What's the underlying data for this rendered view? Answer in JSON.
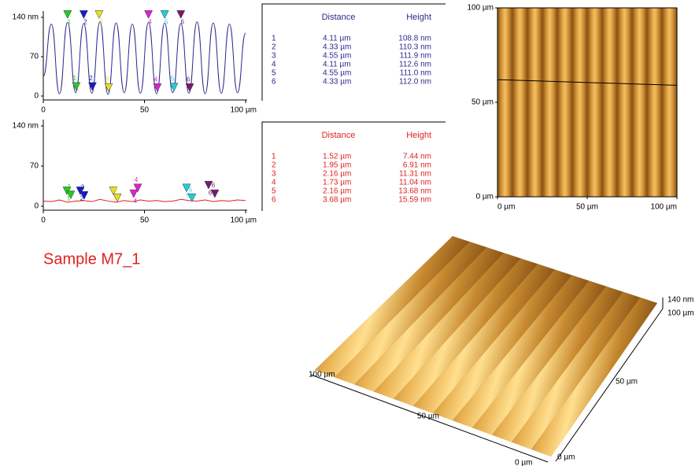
{
  "profiles": [
    {
      "xlim": [
        0,
        100
      ],
      "ylim": [
        0,
        140
      ],
      "xticks": [
        0,
        50,
        {
          "value": 100,
          "label": "100 µm"
        }
      ],
      "yticks": [
        {
          "value": 140,
          "label": "140 nm"
        },
        70,
        0
      ],
      "color": "#2a2a8c",
      "smooth": true,
      "x": [
        0,
        4,
        8,
        12,
        16,
        20,
        24,
        28,
        32,
        36,
        40,
        44,
        48,
        52,
        56,
        60,
        64,
        68,
        72,
        76,
        80,
        84,
        88,
        92,
        96,
        100
      ],
      "values": [
        35,
        128,
        4,
        131,
        6,
        129,
        5,
        132,
        3,
        130,
        6,
        128,
        5,
        131,
        4,
        130,
        6,
        129,
        5,
        132,
        4,
        130,
        5,
        128,
        6,
        112
      ],
      "markers": [
        {
          "label": "1",
          "color": "#22cc22",
          "x": [
            12,
            16.3
          ],
          "values": [
            138,
            10
          ]
        },
        {
          "label": "2",
          "color": "#1a1acc",
          "x": [
            20,
            24.3
          ],
          "values": [
            138,
            10
          ]
        },
        {
          "label": "3",
          "color": "#e8e020",
          "x": [
            27.6,
            32.3
          ],
          "values": [
            138,
            8
          ]
        },
        {
          "label": "4",
          "color": "#e020d0",
          "x": [
            52,
            56.4
          ],
          "values": [
            138,
            8
          ]
        },
        {
          "label": "5",
          "color": "#20d0d8",
          "x": [
            60,
            64.6
          ],
          "values": [
            138,
            9
          ]
        },
        {
          "label": "6",
          "color": "#7a1a6a",
          "x": [
            68,
            72.4
          ],
          "values": [
            138,
            8
          ]
        }
      ]
    },
    {
      "xlim": [
        0,
        100
      ],
      "ylim": [
        0,
        140
      ],
      "xticks": [
        0,
        50,
        {
          "value": 100,
          "label": "100 µm"
        }
      ],
      "yticks": [
        {
          "value": 140,
          "label": "140 nm"
        },
        70,
        0
      ],
      "color": "#e02020",
      "smooth": false,
      "x": [
        0,
        4,
        8,
        12,
        16,
        20,
        24,
        28,
        32,
        36,
        40,
        44,
        48,
        52,
        56,
        60,
        64,
        68,
        72,
        76,
        80,
        84,
        88,
        92,
        96,
        100
      ],
      "values": [
        9,
        8,
        11,
        7,
        9,
        10,
        8,
        12,
        9,
        7,
        10,
        8,
        11,
        9,
        10,
        8,
        9,
        12,
        10,
        9,
        11,
        8,
        10,
        9,
        11,
        10
      ],
      "markers": [
        {
          "label": "1",
          "color": "#22cc22",
          "x": [
            11.7,
            13.6
          ],
          "values": [
            20,
            13
          ]
        },
        {
          "label": "2",
          "color": "#1a1acc",
          "x": [
            18.3,
            20.2
          ],
          "values": [
            20,
            12
          ]
        },
        {
          "label": "3",
          "color": "#e8e020",
          "x": [
            34.6,
            36.6
          ],
          "values": [
            20,
            8
          ]
        },
        {
          "label": "4",
          "color": "#e020d0",
          "x": [
            44.7,
            46.7
          ],
          "values": [
            15,
            25
          ]
        },
        {
          "label": "5",
          "color": "#20d0d8",
          "x": [
            70.8,
            73.5
          ],
          "values": [
            25,
            8
          ]
        },
        {
          "label": "6",
          "color": "#7a1a6a",
          "x": [
            81.7,
            84.8
          ],
          "values": [
            30,
            15
          ]
        }
      ]
    }
  ],
  "tables": [
    {
      "color": "#2a2a8c",
      "headers": [
        "Distance",
        "Height"
      ],
      "rows": [
        [
          "1",
          "4.11 µm",
          "108.8 nm"
        ],
        [
          "2",
          "4.33 µm",
          "110.3 nm"
        ],
        [
          "3",
          "4.55 µm",
          "111.9 nm"
        ],
        [
          "4",
          "4.11 µm",
          "112.6 nm"
        ],
        [
          "5",
          "4.55 µm",
          "111.0 nm"
        ],
        [
          "6",
          "4.33 µm",
          "112.0 nm"
        ]
      ]
    },
    {
      "color": "#e02020",
      "headers": [
        "Distance",
        "Height"
      ],
      "rows": [
        [
          "1",
          "1.52 µm",
          "7.44 nm"
        ],
        [
          "2",
          "1.95 µm",
          "6.91 nm"
        ],
        [
          "3",
          "2.16 µm",
          "11.31 nm"
        ],
        [
          "4",
          "1.73 µm",
          "11.04 nm"
        ],
        [
          "5",
          "2.16 µm",
          "13.68 nm"
        ],
        [
          "6",
          "3.68 µm",
          "15.59 nm"
        ]
      ]
    }
  ],
  "image": {
    "lim": [
      0,
      100
    ],
    "xticks": [
      {
        "value": 0,
        "label": "0 µm"
      },
      {
        "value": 50,
        "label": "50 µm"
      },
      {
        "value": 100,
        "label": "100 µm"
      }
    ],
    "yticks": [
      {
        "value": 100,
        "label": "100 µm"
      },
      {
        "value": 50,
        "label": "50 µm"
      },
      {
        "value": 0,
        "label": "0 µm"
      }
    ],
    "cut_line": [
      62,
      59
    ]
  },
  "sample_label": "Sample M7_1",
  "view3d": {
    "z_label": "140 nm",
    "right_axis": [
      "100 µm",
      "50 µm",
      "0 µm"
    ],
    "front_axis": [
      "100 µm",
      "50 µm",
      "0 µm"
    ]
  }
}
